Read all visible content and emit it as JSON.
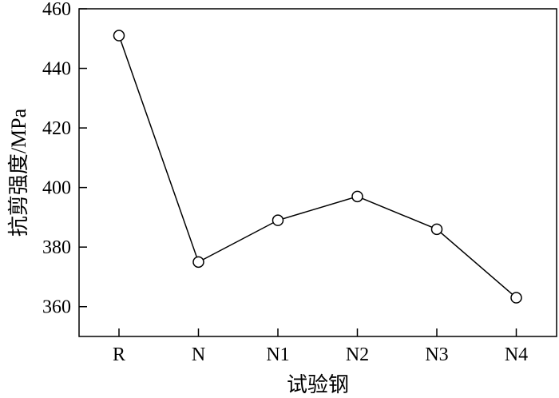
{
  "chart_data": {
    "type": "line",
    "categories": [
      "R",
      "N",
      "N1",
      "N2",
      "N3",
      "N4"
    ],
    "values": [
      451,
      375,
      389,
      397,
      386,
      363
    ],
    "xlabel": "试验钢",
    "ylabel": "抗剪强度/MPa",
    "ylim": [
      350,
      460
    ],
    "yticks": [
      360,
      380,
      400,
      420,
      440,
      460
    ],
    "marker": "open-circle",
    "grid": false,
    "line_color": "#000000"
  }
}
